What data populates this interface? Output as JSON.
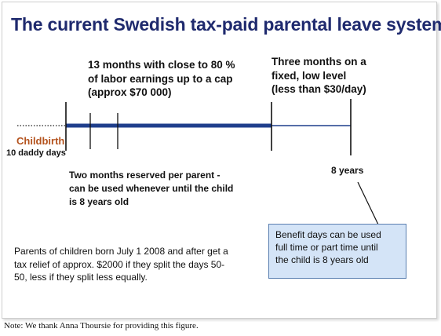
{
  "title": "The current Swedish tax-paid parental leave system",
  "timeline": {
    "paid_period_caption": [
      "13 months with close to 80 %",
      "of labor earnings up to a cap",
      "(approx $70 000)"
    ],
    "low_period_caption": [
      "Three months on a",
      "fixed, low level",
      "(less than $30/day)"
    ],
    "start_label": "Childbirth",
    "daddy_days_label": "10 daddy days",
    "end_label": "8 years",
    "reserved_caption": [
      "Two months reserved  per parent  -",
      "can be used whenever until the child",
      "is 8 years old"
    ]
  },
  "callout": {
    "text": [
      "Benefit days can be used",
      "full time or part time until",
      "the child is 8 years old"
    ]
  },
  "tax_relief_text": [
    "Parents of children born July 1 2008 and after get a",
    "tax relief of approx. $2000 if they split the days 50-",
    "50, less if they split less equally."
  ],
  "footnote": "Note: We thank Anna Thoursie for providing this figure.",
  "colors": {
    "title": "#1f2a6e",
    "thick_bar": "#1f3f8c",
    "thin_line": "#1f3f8c",
    "childbirth": "#b4531e",
    "callout_fill": "#d4e4f7",
    "callout_border": "#5a7fb0"
  }
}
